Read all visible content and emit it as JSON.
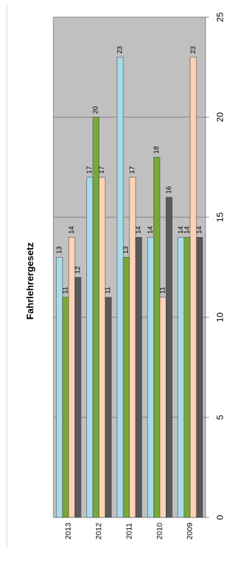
{
  "chart_data": {
    "type": "bar",
    "title": "Fahrlehrergesetz",
    "categories": [
      "2013",
      "2012",
      "2011",
      "2010",
      "2009"
    ],
    "series": [
      {
        "color": "#a8dcea",
        "values": [
          13,
          17,
          23,
          14,
          14
        ]
      },
      {
        "color": "#78a83a",
        "values": [
          11,
          20,
          13,
          18,
          14
        ]
      },
      {
        "color": "#ffd2b4",
        "values": [
          14,
          17,
          17,
          11,
          23
        ]
      },
      {
        "color": "#595959",
        "values": [
          12,
          11,
          14,
          16,
          14
        ]
      }
    ],
    "ylim": [
      0,
      25
    ],
    "yticks": [
      0,
      5,
      10,
      15,
      20,
      25
    ],
    "grid": true
  }
}
